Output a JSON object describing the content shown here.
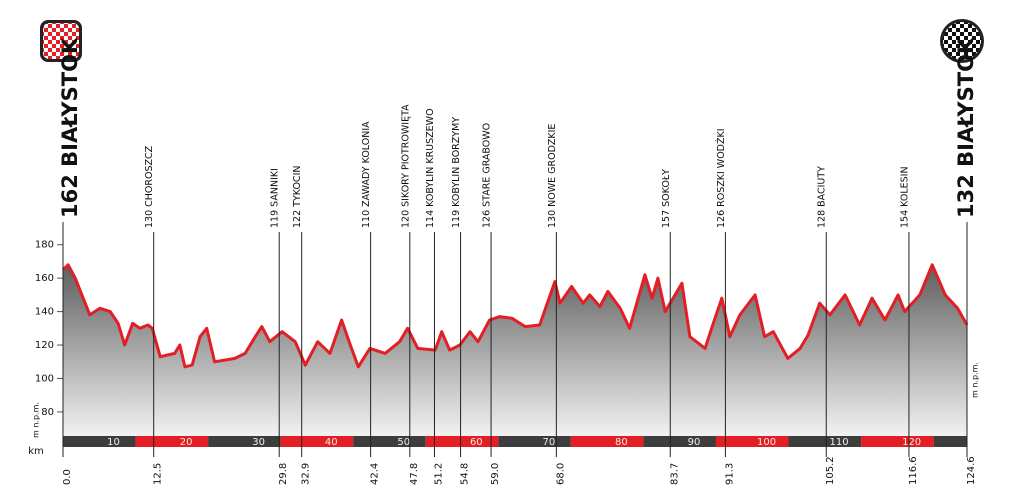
{
  "chart_data": {
    "type": "area",
    "color": "#e31e24",
    "xlim": [
      0,
      124.6
    ],
    "ylim": [
      65,
      190
    ],
    "yticks": [
      80,
      100,
      120,
      140,
      160,
      180
    ],
    "y_unit": "m n.p.m.",
    "x": [
      0,
      0.7,
      1.7,
      2.6,
      3.7,
      5.1,
      6.5,
      7.6,
      8.5,
      9.6,
      10.6,
      11.7,
      12.3,
      13.4,
      15.4,
      16.1,
      16.8,
      17.8,
      18.9,
      19.8,
      20.9,
      23.7,
      25.1,
      26.5,
      27.4,
      28.5,
      30.2,
      32.0,
      33.4,
      35.1,
      36.8,
      38.4,
      39.6,
      40.7,
      42.3,
      44.4,
      46.4,
      47.5,
      48.9,
      51.3,
      52.2,
      53.3,
      54.7,
      56.1,
      57.2,
      58.8,
      60.2,
      61.9,
      63.7,
      65.7,
      67.8,
      68.5,
      70.1,
      71.7,
      72.6,
      74.0,
      75.1,
      76.8,
      78.1,
      80.2,
      81.2,
      82.0,
      83.0,
      85.3,
      86.4,
      88.5,
      89.4,
      90.8,
      91.9,
      93.3,
      95.4,
      96.7,
      97.9,
      99.9,
      101.6,
      102.7,
      104.3,
      105.7,
      107.8,
      109.8,
      111.5,
      113.3,
      115.1,
      116.0,
      118.1,
      119.8,
      121.6,
      123.3,
      124.6
    ],
    "values": [
      165,
      168,
      160,
      150,
      138,
      142,
      140,
      133,
      120,
      133,
      130,
      132,
      130,
      113,
      115,
      120,
      107,
      108,
      125,
      130,
      110,
      112,
      115,
      125,
      131,
      122,
      128,
      122,
      108,
      122,
      115,
      135,
      120,
      107,
      118,
      115,
      122,
      130,
      118,
      117,
      128,
      117,
      120,
      128,
      122,
      135,
      137,
      136,
      131,
      132,
      158,
      145,
      155,
      145,
      150,
      143,
      152,
      142,
      130,
      162,
      148,
      160,
      140,
      157,
      125,
      118,
      130,
      148,
      125,
      138,
      150,
      125,
      128,
      112,
      118,
      126,
      145,
      138,
      150,
      132,
      148,
      135,
      150,
      140,
      150,
      168,
      150,
      142,
      132
    ],
    "start": {
      "name": "162 BIAŁYSTOK",
      "km": {
        "value": 0,
        "label": "0.0"
      }
    },
    "finish": {
      "name": "132 BIAŁYSTOK",
      "km": 124.6
    },
    "waypoints": [
      {
        "name": "130 CHOROSZCZ",
        "km": 12.5
      },
      {
        "name": "119 SANNIKI",
        "km": 29.8
      },
      {
        "name": "122 TYKOCIN",
        "km": 32.9
      },
      {
        "name": "110 ZAWADY KOLONIA",
        "km": 42.4
      },
      {
        "name": "120 SIKORY PIOTROWIĘTA",
        "km": 47.8
      },
      {
        "name": "114 KOBYLIN KRUSZEWO",
        "km": 51.2
      },
      {
        "name": "119 KOBYLIN BORZYMY",
        "km": 54.8
      },
      {
        "name": "126 STARE GRABOWO",
        "km": {
          "value": 59,
          "label": "59.0"
        }
      },
      {
        "name": "130 NOWE GRODZKIE",
        "km": {
          "value": 68,
          "label": "68.0"
        }
      },
      {
        "name": "157 SOKOŁY",
        "km": 83.7
      },
      {
        "name": "126 ROSZKI WODŹKI",
        "km": 91.3
      },
      {
        "name": "128 BACIUTY",
        "km": 105.2
      },
      {
        "name": "154 KOLESIN",
        "km": 116.6
      }
    ],
    "km_label": "km",
    "km_ticks": [
      10,
      20,
      30,
      40,
      50,
      60,
      70,
      80,
      90,
      100,
      110,
      120
    ]
  }
}
